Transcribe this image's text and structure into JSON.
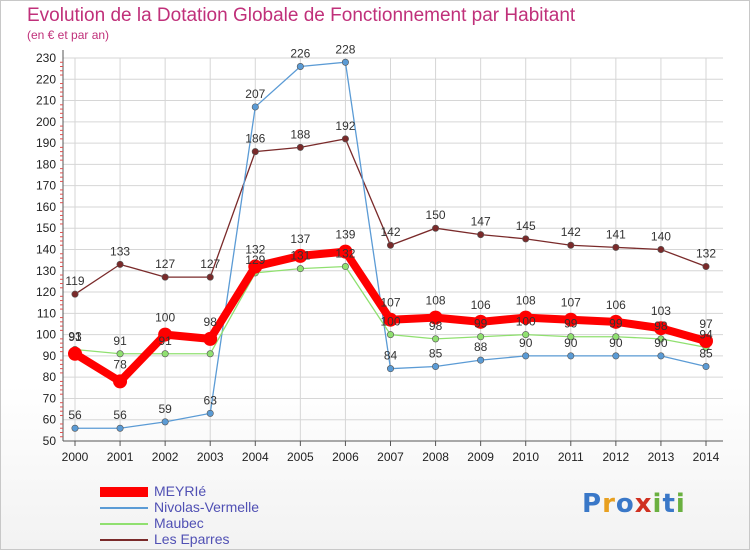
{
  "header": {
    "title": "Evolution de la Dotation Globale de Fonctionnement par Habitant",
    "subtitle": "(en € et par an)"
  },
  "logo": {
    "text": "Proxiti",
    "letters": [
      "P",
      "r",
      "o",
      "x",
      "i",
      "t",
      "i"
    ],
    "colors": [
      "#3a78c8",
      "#e8a020",
      "#3a78c8",
      "#d03020",
      "#6ab040",
      "#3a78c8",
      "#6ab040"
    ]
  },
  "chart_data": {
    "type": "line",
    "title": "Evolution de la Dotation Globale de Fonctionnement par Habitant",
    "subtitle": "(en € et par an)",
    "xlabel": "",
    "ylabel": "",
    "ylim": [
      50,
      230
    ],
    "yticks": [
      50,
      60,
      70,
      80,
      90,
      100,
      110,
      120,
      130,
      140,
      150,
      160,
      170,
      180,
      190,
      200,
      210,
      220,
      230
    ],
    "categories": [
      "2000",
      "2001",
      "2002",
      "2003",
      "2004",
      "2005",
      "2006",
      "2007",
      "2008",
      "2009",
      "2010",
      "2011",
      "2012",
      "2013",
      "2014"
    ],
    "grid": true,
    "legend_position": "bottom-left",
    "series": [
      {
        "name": "MEYRIé",
        "color": "#ff0000",
        "emphasis": true,
        "values": [
          91,
          78,
          100,
          98,
          132,
          137,
          139,
          107,
          108,
          106,
          108,
          107,
          106,
          103,
          97
        ],
        "labels": [
          "91",
          "78",
          "100",
          "98",
          "132",
          "137",
          "139",
          "107",
          "108",
          "106",
          "108",
          "107",
          "106",
          "103",
          "97"
        ]
      },
      {
        "name": "Nivolas-Vermelle",
        "color": "#5b9bd5",
        "values": [
          56,
          56,
          59,
          63,
          207,
          226,
          228,
          84,
          85,
          88,
          90,
          90,
          90,
          90,
          85
        ],
        "labels": [
          "56",
          "56",
          "59",
          "63",
          "207",
          "226",
          "228",
          "84",
          "85",
          "88",
          "90",
          "90",
          "90",
          "90",
          "85"
        ]
      },
      {
        "name": "Maubec",
        "color": "#90e070",
        "values": [
          93,
          91,
          91,
          91,
          129,
          131,
          132,
          100,
          98,
          99,
          100,
          99,
          99,
          98,
          94
        ],
        "labels": [
          "93",
          "91",
          "91",
          "",
          "129",
          "131",
          "132",
          "100",
          "98",
          "99",
          "100",
          "99",
          "99",
          "98",
          "94"
        ]
      },
      {
        "name": "Les Eparres",
        "color": "#7a2a2a",
        "values": [
          119,
          133,
          127,
          127,
          186,
          188,
          192,
          142,
          150,
          147,
          145,
          142,
          141,
          140,
          132
        ],
        "labels": [
          "119",
          "133",
          "127",
          "127",
          "186",
          "188",
          "192",
          "142",
          "150",
          "147",
          "145",
          "142",
          "141",
          "140",
          "132"
        ]
      }
    ]
  }
}
